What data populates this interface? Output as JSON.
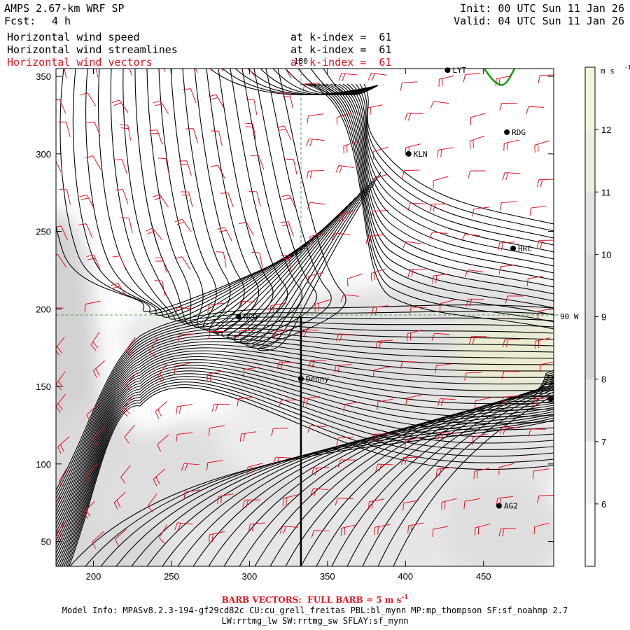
{
  "header": {
    "model": "AMPS 2.67-km WRF SP",
    "fcst_label": "Fcst:",
    "fcst_value": "4 h",
    "init": "Init: 00 UTC Sun 11 Jan 26",
    "valid": "Valid: 04 UTC Sun 11 Jan 26",
    "layers": [
      {
        "name": "Horizontal wind speed",
        "level": "at k-index =  61",
        "color": "#000000"
      },
      {
        "name": "Horizontal wind streamlines",
        "level": "at k-index =  61",
        "color": "#000000"
      },
      {
        "name": "Horizontal wind vectors",
        "level": "at k-index =  61",
        "color": "#e8101c"
      }
    ]
  },
  "map": {
    "x_ticks": [
      "200",
      "250",
      "300",
      "350",
      "400",
      "450"
    ],
    "y_ticks": [
      "350",
      "300",
      "250",
      "200",
      "150",
      "100",
      "50"
    ],
    "x_range": [
      176,
      495
    ],
    "y_range": [
      34,
      355
    ],
    "meridian_label": "180",
    "parallel_label": "90 W",
    "stations": [
      {
        "id": "LYT",
        "x": 427,
        "y": 354
      },
      {
        "id": "RDG",
        "x": 465,
        "y": 314
      },
      {
        "id": "KLN",
        "x": 402,
        "y": 300
      },
      {
        "id": "HRC",
        "x": 469,
        "y": 239
      },
      {
        "id": "NCO",
        "x": 293,
        "y": 195
      },
      {
        "id": "Denny",
        "x": 333,
        "y": 155
      },
      {
        "id": "",
        "x": 493,
        "y": 142
      },
      {
        "id": "AG2",
        "x": 460,
        "y": 73
      }
    ],
    "profile_line": {
      "x": 333,
      "y_top": 195,
      "y_bottom": 34
    },
    "colors": {
      "streamline": "#000000",
      "barb": "#e8101c",
      "coast": "#12a112",
      "graticule": "#1d8f1d"
    }
  },
  "colorbar": {
    "unit": "m s",
    "unit_exp": "-1",
    "ticks": [
      "12",
      "11",
      "10",
      "9",
      "8",
      "7",
      "6"
    ],
    "bins": [
      {
        "lo": 5,
        "hi": 6,
        "color": "#ffffff"
      },
      {
        "lo": 6,
        "hi": 7,
        "color": "#f2f2f2"
      },
      {
        "lo": 7,
        "hi": 8,
        "color": "#e3e3e3"
      },
      {
        "lo": 8,
        "hi": 9,
        "color": "#d6d6d6"
      },
      {
        "lo": 9,
        "hi": 10,
        "color": "#d9d9d9"
      },
      {
        "lo": 10,
        "hi": 11,
        "color": "#e2e2e2"
      },
      {
        "lo": 11,
        "hi": 12,
        "color": "#eeeedc"
      },
      {
        "lo": 12,
        "hi": 13,
        "color": "#f4f4dc"
      }
    ]
  },
  "footer": {
    "barb_note": "BARB VECTORS:  FULL BARB = 5 m s",
    "barb_exp": "-1",
    "model_info": "Model Info: MPASv8.2.3-194-gf29cd82c CU:cu_grell_freitas PBL:bl_mynn MP:mp_thompson SF:sf_noahmp 2.7",
    "model_info2": "LW:rrtmg_lw SW:rrtmg_sw SFLAY:sf_mynn"
  }
}
